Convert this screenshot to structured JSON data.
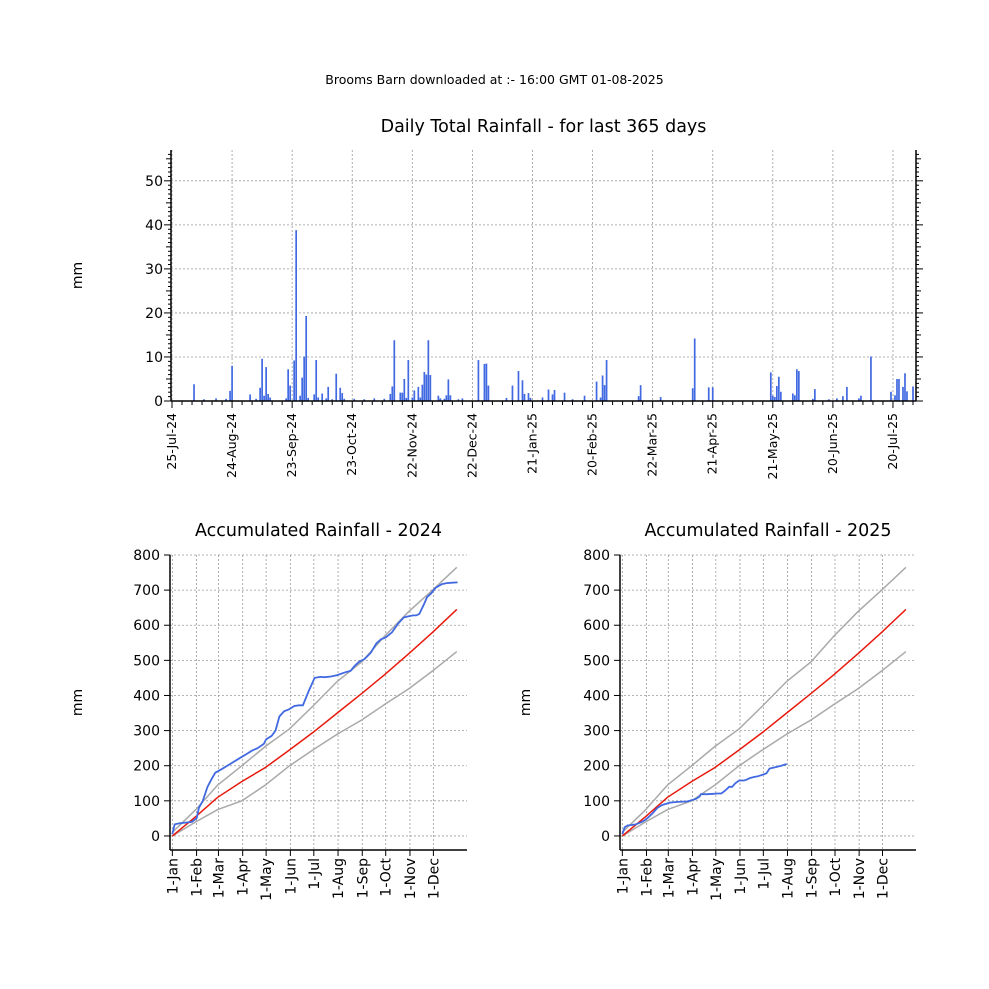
{
  "header": "Brooms Barn downloaded at :- 16:00 GMT 01-08-2025",
  "colors": {
    "rain": "#4169e1",
    "mean": "#e8190c",
    "band": "#a9a9a9",
    "grid": "#9a9a9a"
  },
  "chart_data": [
    {
      "type": "bar",
      "title": "Daily Total Rainfall - for last 365 days",
      "ylabel": "mm",
      "ylim": [
        0,
        57
      ],
      "yticks": [
        0,
        10,
        20,
        30,
        40,
        50
      ],
      "xlim": [
        "2024-07-25",
        "2025-07-31"
      ],
      "xticks": [
        "25-Jul-24",
        "24-Aug-24",
        "23-Sep-24",
        "23-Oct-24",
        "22-Nov-24",
        "22-Dec-24",
        "21-Jan-25",
        "20-Feb-25",
        "22-Mar-25",
        "21-Apr-25",
        "21-May-25",
        "20-Jun-25",
        "20-Jul-25"
      ],
      "xtick_dates": [
        "2024-07-25",
        "2024-08-24",
        "2024-09-23",
        "2024-10-23",
        "2024-11-22",
        "2024-12-22",
        "2025-01-21",
        "2025-02-20",
        "2025-03-22",
        "2025-04-21",
        "2025-05-21",
        "2025-06-20",
        "2025-07-20"
      ],
      "grid": true,
      "bars": [
        [
          "2024-08-05",
          3.8
        ],
        [
          "2024-08-10",
          0.4
        ],
        [
          "2024-08-16",
          0.6
        ],
        [
          "2024-08-21",
          0.5
        ],
        [
          "2024-08-23",
          2.3
        ],
        [
          "2024-08-24",
          8.0
        ],
        [
          "2024-09-02",
          1.5
        ],
        [
          "2024-09-05",
          0.5
        ],
        [
          "2024-09-07",
          3.0
        ],
        [
          "2024-09-08",
          9.6
        ],
        [
          "2024-09-09",
          1.2
        ],
        [
          "2024-09-10",
          7.7
        ],
        [
          "2024-09-11",
          1.6
        ],
        [
          "2024-09-12",
          0.8
        ],
        [
          "2024-09-20",
          0.6
        ],
        [
          "2024-09-21",
          7.2
        ],
        [
          "2024-09-22",
          3.5
        ],
        [
          "2024-09-24",
          9.2
        ],
        [
          "2024-09-25",
          38.8
        ],
        [
          "2024-09-27",
          1.2
        ],
        [
          "2024-09-28",
          5.3
        ],
        [
          "2024-09-29",
          10.1
        ],
        [
          "2024-09-30",
          19.3
        ],
        [
          "2024-10-01",
          0.7
        ],
        [
          "2024-10-04",
          1.5
        ],
        [
          "2024-10-05",
          9.3
        ],
        [
          "2024-10-06",
          0.8
        ],
        [
          "2024-10-08",
          1.7
        ],
        [
          "2024-10-10",
          0.6
        ],
        [
          "2024-10-11",
          3.2
        ],
        [
          "2024-10-13",
          0.4
        ],
        [
          "2024-10-15",
          6.2
        ],
        [
          "2024-10-17",
          3.0
        ],
        [
          "2024-10-18",
          1.8
        ],
        [
          "2024-10-19",
          0.5
        ],
        [
          "2024-10-24",
          0.5
        ],
        [
          "2024-10-29",
          0.4
        ],
        [
          "2024-11-03",
          0.6
        ],
        [
          "2024-11-08",
          0.5
        ],
        [
          "2024-11-11",
          1.6
        ],
        [
          "2024-11-12",
          3.3
        ],
        [
          "2024-11-13",
          13.8
        ],
        [
          "2024-11-16",
          1.9
        ],
        [
          "2024-11-17",
          1.9
        ],
        [
          "2024-11-18",
          5.0
        ],
        [
          "2024-11-19",
          0.7
        ],
        [
          "2024-11-20",
          9.3
        ],
        [
          "2024-11-22",
          0.8
        ],
        [
          "2024-11-23",
          2.4
        ],
        [
          "2024-11-25",
          3.2
        ],
        [
          "2024-11-26",
          0.8
        ],
        [
          "2024-11-27",
          3.7
        ],
        [
          "2024-11-28",
          6.6
        ],
        [
          "2024-11-29",
          6.0
        ],
        [
          "2024-11-30",
          13.8
        ],
        [
          "2024-12-01",
          5.9
        ],
        [
          "2024-12-05",
          1.2
        ],
        [
          "2024-12-06",
          0.6
        ],
        [
          "2024-12-08",
          0.5
        ],
        [
          "2024-12-09",
          1.3
        ],
        [
          "2024-12-10",
          4.9
        ],
        [
          "2024-12-11",
          1.3
        ],
        [
          "2024-12-15",
          0.4
        ],
        [
          "2024-12-17",
          0.6
        ],
        [
          "2024-12-25",
          9.3
        ],
        [
          "2024-12-28",
          8.4
        ],
        [
          "2024-12-29",
          8.5
        ],
        [
          "2024-12-30",
          3.5
        ],
        [
          "2025-01-08",
          0.7
        ],
        [
          "2025-01-11",
          3.5
        ],
        [
          "2025-01-14",
          6.8
        ],
        [
          "2025-01-16",
          4.7
        ],
        [
          "2025-01-17",
          1.6
        ],
        [
          "2025-01-19",
          1.8
        ],
        [
          "2025-01-20",
          0.7
        ],
        [
          "2025-01-26",
          0.8
        ],
        [
          "2025-01-29",
          2.6
        ],
        [
          "2025-01-31",
          1.5
        ],
        [
          "2025-02-01",
          2.5
        ],
        [
          "2025-02-06",
          1.9
        ],
        [
          "2025-02-10",
          0.4
        ],
        [
          "2025-02-16",
          1.2
        ],
        [
          "2025-02-22",
          4.4
        ],
        [
          "2025-02-24",
          0.8
        ],
        [
          "2025-02-25",
          5.8
        ],
        [
          "2025-02-26",
          3.6
        ],
        [
          "2025-02-27",
          9.3
        ],
        [
          "2025-03-15",
          1.1
        ],
        [
          "2025-03-16",
          3.6
        ],
        [
          "2025-03-26",
          0.9
        ],
        [
          "2025-04-11",
          2.9
        ],
        [
          "2025-04-12",
          14.2
        ],
        [
          "2025-04-19",
          3.1
        ],
        [
          "2025-04-21",
          3.1
        ],
        [
          "2025-05-20",
          6.5
        ],
        [
          "2025-05-21",
          1.2
        ],
        [
          "2025-05-22",
          0.9
        ],
        [
          "2025-05-23",
          3.4
        ],
        [
          "2025-05-24",
          5.5
        ],
        [
          "2025-05-25",
          2.1
        ],
        [
          "2025-05-31",
          1.7
        ],
        [
          "2025-06-01",
          1.3
        ],
        [
          "2025-06-02",
          7.2
        ],
        [
          "2025-06-03",
          6.8
        ],
        [
          "2025-06-10",
          0.5
        ],
        [
          "2025-06-11",
          2.7
        ],
        [
          "2025-06-18",
          0.4
        ],
        [
          "2025-06-22",
          0.6
        ],
        [
          "2025-06-25",
          1.1
        ],
        [
          "2025-06-27",
          3.2
        ],
        [
          "2025-07-03",
          0.6
        ],
        [
          "2025-07-04",
          1.2
        ],
        [
          "2025-07-09",
          10.1
        ],
        [
          "2025-07-19",
          2.1
        ],
        [
          "2025-07-21",
          1.3
        ],
        [
          "2025-07-22",
          5.0
        ],
        [
          "2025-07-23",
          5.0
        ],
        [
          "2025-07-25",
          3.2
        ],
        [
          "2025-07-26",
          6.3
        ],
        [
          "2025-07-27",
          2.2
        ],
        [
          "2025-07-30",
          3.3
        ]
      ]
    },
    {
      "type": "line",
      "title": "Accumulated Rainfall - 2024",
      "ylabel": "mm",
      "ylim": [
        -40,
        800
      ],
      "yticks": [
        0,
        100,
        200,
        300,
        400,
        500,
        600,
        700,
        800
      ],
      "xticks": [
        "1-Jan",
        "1-Feb",
        "1-Mar",
        "1-Apr",
        "1-May",
        "1-Jun",
        "1-Jul",
        "1-Aug",
        "1-Sep",
        "1-Oct",
        "1-Nov",
        "1-Dec"
      ],
      "xtick_days": [
        1,
        32,
        60,
        91,
        121,
        152,
        182,
        213,
        244,
        274,
        305,
        335
      ],
      "xlim_days": [
        -2,
        378
      ],
      "grid": true,
      "mean": [
        [
          1,
          0
        ],
        [
          31,
          55
        ],
        [
          59,
          110
        ],
        [
          90,
          155
        ],
        [
          120,
          195
        ],
        [
          151,
          245
        ],
        [
          181,
          295
        ],
        [
          212,
          350
        ],
        [
          243,
          405
        ],
        [
          273,
          460
        ],
        [
          304,
          520
        ],
        [
          334,
          580
        ],
        [
          365,
          645
        ]
      ],
      "upper": [
        [
          1,
          10
        ],
        [
          31,
          75
        ],
        [
          59,
          145
        ],
        [
          90,
          200
        ],
        [
          120,
          255
        ],
        [
          151,
          305
        ],
        [
          181,
          370
        ],
        [
          212,
          440
        ],
        [
          243,
          495
        ],
        [
          273,
          570
        ],
        [
          304,
          640
        ],
        [
          334,
          700
        ],
        [
          365,
          765
        ]
      ],
      "lower": [
        [
          1,
          0
        ],
        [
          31,
          40
        ],
        [
          59,
          75
        ],
        [
          90,
          100
        ],
        [
          120,
          145
        ],
        [
          151,
          200
        ],
        [
          181,
          245
        ],
        [
          212,
          290
        ],
        [
          243,
          330
        ],
        [
          273,
          375
        ],
        [
          304,
          420
        ],
        [
          334,
          470
        ],
        [
          365,
          525
        ]
      ],
      "observed": [
        [
          1,
          5
        ],
        [
          4,
          33
        ],
        [
          10,
          36
        ],
        [
          18,
          38
        ],
        [
          26,
          40
        ],
        [
          32,
          50
        ],
        [
          35,
          80
        ],
        [
          40,
          100
        ],
        [
          46,
          140
        ],
        [
          52,
          165
        ],
        [
          56,
          180
        ],
        [
          64,
          190
        ],
        [
          75,
          205
        ],
        [
          86,
          220
        ],
        [
          95,
          232
        ],
        [
          103,
          243
        ],
        [
          110,
          250
        ],
        [
          118,
          262
        ],
        [
          121,
          275
        ],
        [
          128,
          285
        ],
        [
          133,
          300
        ],
        [
          138,
          340
        ],
        [
          144,
          355
        ],
        [
          150,
          360
        ],
        [
          157,
          370
        ],
        [
          163,
          372
        ],
        [
          168,
          372
        ],
        [
          175,
          410
        ],
        [
          183,
          450
        ],
        [
          190,
          453
        ],
        [
          196,
          452
        ],
        [
          204,
          454
        ],
        [
          212,
          458
        ],
        [
          222,
          466
        ],
        [
          229,
          470
        ],
        [
          234,
          484
        ],
        [
          240,
          496
        ],
        [
          247,
          504
        ],
        [
          255,
          522
        ],
        [
          262,
          548
        ],
        [
          268,
          560
        ],
        [
          274,
          565
        ],
        [
          282,
          580
        ],
        [
          290,
          605
        ],
        [
          297,
          622
        ],
        [
          302,
          625
        ],
        [
          309,
          628
        ],
        [
          313,
          628
        ],
        [
          317,
          632
        ],
        [
          323,
          660
        ],
        [
          327,
          680
        ],
        [
          332,
          690
        ],
        [
          338,
          707
        ],
        [
          346,
          717
        ],
        [
          352,
          720
        ],
        [
          359,
          721
        ],
        [
          366,
          722
        ]
      ]
    },
    {
      "type": "line",
      "title": "Accumulated Rainfall - 2025",
      "ylabel": "mm",
      "ylim": [
        -40,
        800
      ],
      "yticks": [
        0,
        100,
        200,
        300,
        400,
        500,
        600,
        700,
        800
      ],
      "xticks": [
        "1-Jan",
        "1-Feb",
        "1-Mar",
        "1-Apr",
        "1-May",
        "1-Jun",
        "1-Jul",
        "1-Aug",
        "1-Sep",
        "1-Oct",
        "1-Nov",
        "1-Dec"
      ],
      "xtick_days": [
        1,
        32,
        60,
        91,
        121,
        152,
        182,
        213,
        244,
        274,
        305,
        335
      ],
      "xlim_days": [
        -2,
        378
      ],
      "grid": true,
      "mean": [
        [
          1,
          0
        ],
        [
          31,
          55
        ],
        [
          59,
          110
        ],
        [
          90,
          155
        ],
        [
          120,
          195
        ],
        [
          151,
          245
        ],
        [
          181,
          295
        ],
        [
          212,
          350
        ],
        [
          243,
          405
        ],
        [
          273,
          460
        ],
        [
          304,
          520
        ],
        [
          334,
          580
        ],
        [
          365,
          645
        ]
      ],
      "upper": [
        [
          1,
          10
        ],
        [
          31,
          75
        ],
        [
          59,
          145
        ],
        [
          90,
          200
        ],
        [
          120,
          255
        ],
        [
          151,
          305
        ],
        [
          181,
          370
        ],
        [
          212,
          440
        ],
        [
          243,
          495
        ],
        [
          273,
          570
        ],
        [
          304,
          640
        ],
        [
          334,
          700
        ],
        [
          365,
          765
        ]
      ],
      "lower": [
        [
          1,
          0
        ],
        [
          31,
          40
        ],
        [
          59,
          75
        ],
        [
          90,
          100
        ],
        [
          120,
          145
        ],
        [
          151,
          200
        ],
        [
          181,
          245
        ],
        [
          212,
          290
        ],
        [
          243,
          330
        ],
        [
          273,
          375
        ],
        [
          304,
          420
        ],
        [
          334,
          470
        ],
        [
          365,
          525
        ]
      ],
      "observed": [
        [
          1,
          5
        ],
        [
          4,
          25
        ],
        [
          8,
          30
        ],
        [
          12,
          31
        ],
        [
          18,
          33
        ],
        [
          26,
          40
        ],
        [
          30,
          45
        ],
        [
          34,
          52
        ],
        [
          40,
          65
        ],
        [
          46,
          80
        ],
        [
          52,
          88
        ],
        [
          58,
          92
        ],
        [
          62,
          95
        ],
        [
          72,
          97
        ],
        [
          84,
          98
        ],
        [
          95,
          105
        ],
        [
          100,
          112
        ],
        [
          102,
          119
        ],
        [
          110,
          119
        ],
        [
          118,
          120
        ],
        [
          123,
          121
        ],
        [
          128,
          121
        ],
        [
          133,
          129
        ],
        [
          138,
          140
        ],
        [
          142,
          140
        ],
        [
          146,
          150
        ],
        [
          151,
          158
        ],
        [
          157,
          158
        ],
        [
          160,
          160
        ],
        [
          165,
          165
        ],
        [
          170,
          168
        ],
        [
          175,
          170
        ],
        [
          186,
          178
        ],
        [
          190,
          192
        ],
        [
          198,
          196
        ],
        [
          205,
          200
        ],
        [
          212,
          205
        ]
      ]
    }
  ]
}
